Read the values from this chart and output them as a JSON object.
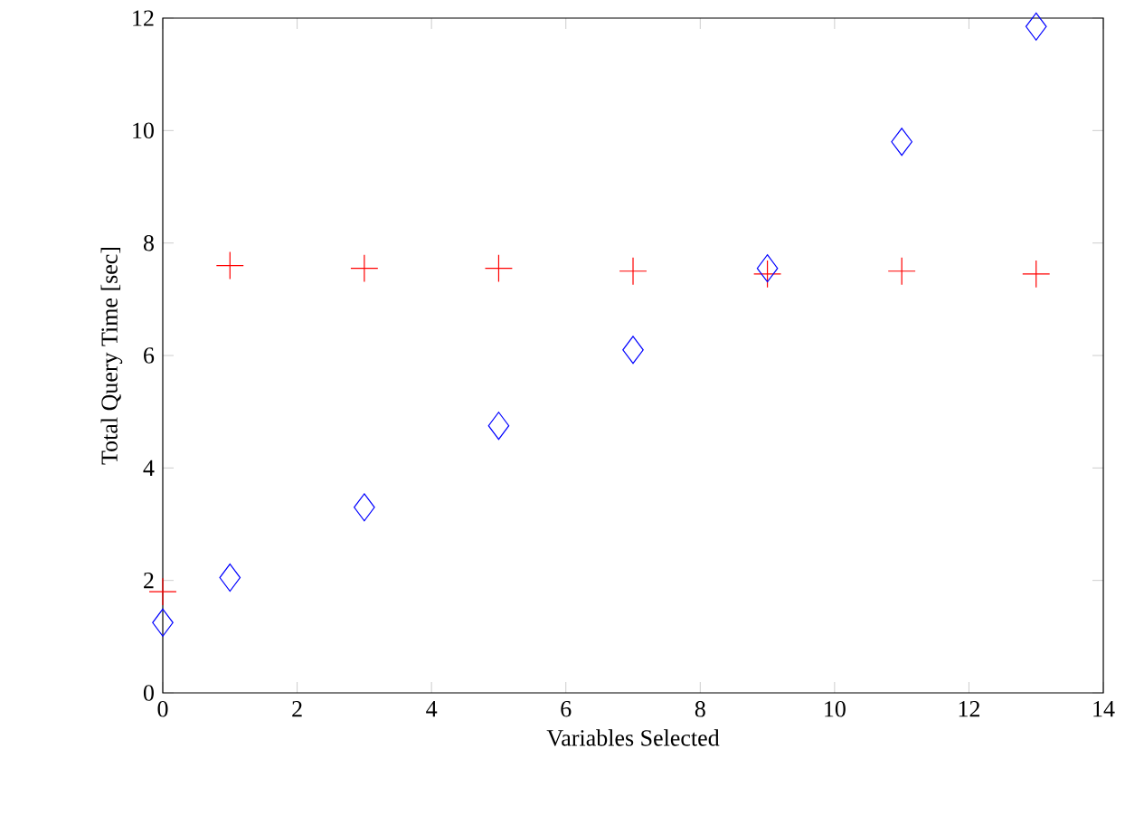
{
  "chart_data": {
    "type": "scatter",
    "xlabel": "Variables Selected",
    "ylabel": "Total Query Time [sec]",
    "xlim": [
      0,
      14
    ],
    "ylim": [
      0,
      12
    ],
    "xticks": [
      0,
      2,
      4,
      6,
      8,
      10,
      12,
      14
    ],
    "yticks": [
      0,
      2,
      4,
      6,
      8,
      10,
      12
    ],
    "grid": false,
    "series": [
      {
        "color": "#ff0000",
        "marker": "cross",
        "x": [
          0,
          1,
          3,
          5,
          7,
          9,
          11,
          13
        ],
        "values": [
          1.8,
          7.6,
          7.55,
          7.55,
          7.5,
          7.45,
          7.5,
          7.45
        ]
      },
      {
        "color": "#0000ff",
        "marker": "diamond",
        "x": [
          0,
          1,
          3,
          5,
          7,
          9,
          11,
          13
        ],
        "values": [
          1.25,
          2.05,
          3.3,
          4.75,
          6.1,
          7.55,
          9.8,
          11.85
        ]
      }
    ]
  }
}
